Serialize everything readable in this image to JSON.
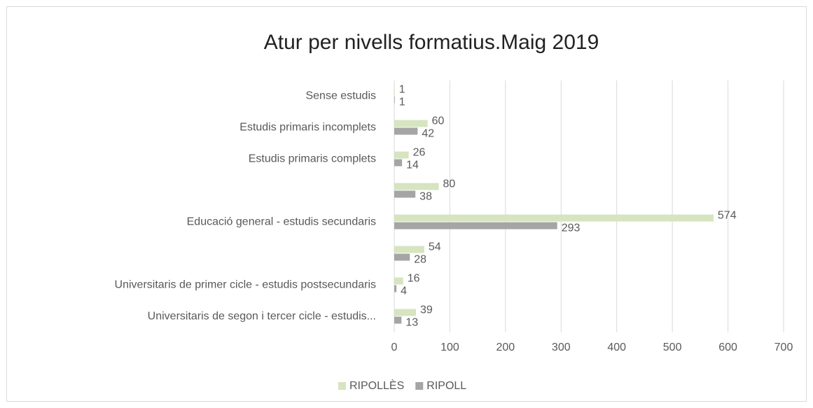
{
  "chart_data": {
    "type": "bar",
    "orientation": "horizontal",
    "title": "Atur per nivells formatius.Maig 2019",
    "categories": [
      "Sense estudis",
      "Estudis primaris incomplets",
      "Estudis primaris complets",
      null,
      "Educació general - estudis secundaris",
      null,
      "Universitaris de primer cicle - estudis postsecundaris",
      "Universitaris de segon i tercer cicle - estudis..."
    ],
    "series": [
      {
        "name": "RIPOLLÈS",
        "color": "#d6e4c0",
        "values": [
          1,
          60,
          26,
          80,
          574,
          54,
          16,
          39
        ]
      },
      {
        "name": "RIPOLL",
        "color": "#a5a5a5",
        "values": [
          1,
          42,
          14,
          38,
          293,
          28,
          4,
          13
        ]
      }
    ],
    "xlim": [
      0,
      700
    ],
    "xticks": [
      0,
      100,
      200,
      300,
      400,
      500,
      600,
      700
    ],
    "grid": true,
    "legend": "bottom"
  }
}
